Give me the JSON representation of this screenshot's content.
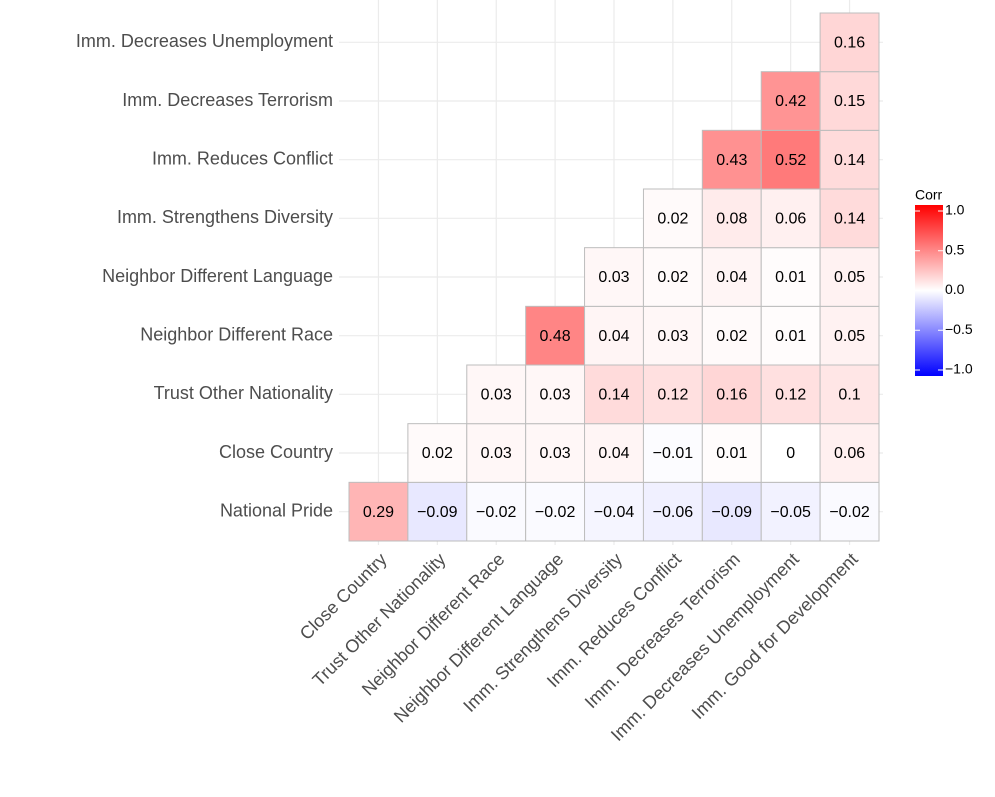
{
  "chart_data": {
    "type": "heatmap",
    "x": [
      "Close Country",
      "Trust Other Nationality",
      "Neighbor Different Race",
      "Neighbor Different Language",
      "Imm. Strengthens Diversity",
      "Imm. Reduces Conflict",
      "Imm. Decreases Terrorism",
      "Imm. Decreases Unemployment",
      "Imm. Good for Development"
    ],
    "y": [
      "National Pride",
      "Close Country",
      "Trust Other Nationality",
      "Neighbor Different Race",
      "Neighbor Different Language",
      "Imm. Strengthens Diversity",
      "Imm. Reduces Conflict",
      "Imm. Decreases Terrorism",
      "Imm. Decreases Unemployment"
    ],
    "values": [
      [
        0.29,
        -0.09,
        -0.02,
        -0.02,
        -0.04,
        -0.06,
        -0.09,
        -0.05,
        -0.02
      ],
      [
        null,
        0.02,
        0.03,
        0.03,
        0.04,
        -0.01,
        0.01,
        0,
        0.06
      ],
      [
        null,
        null,
        0.03,
        0.03,
        0.14,
        0.12,
        0.16,
        0.12,
        0.1
      ],
      [
        null,
        null,
        null,
        0.48,
        0.04,
        0.03,
        0.02,
        0.01,
        0.05
      ],
      [
        null,
        null,
        null,
        null,
        0.03,
        0.02,
        0.04,
        0.01,
        0.05
      ],
      [
        null,
        null,
        null,
        null,
        null,
        0.02,
        0.08,
        0.06,
        0.14
      ],
      [
        null,
        null,
        null,
        null,
        null,
        null,
        0.43,
        0.52,
        0.14
      ],
      [
        null,
        null,
        null,
        null,
        null,
        null,
        null,
        0.42,
        0.15
      ],
      [
        null,
        null,
        null,
        null,
        null,
        null,
        null,
        null,
        0.16
      ]
    ],
    "value_labels": [
      [
        "0.29",
        "−0.09",
        "−0.02",
        "−0.02",
        "−0.04",
        "−0.06",
        "−0.09",
        "−0.05",
        "−0.02"
      ],
      [
        null,
        "0.02",
        "0.03",
        "0.03",
        "0.04",
        "−0.01",
        "0.01",
        "0",
        "0.06"
      ],
      [
        null,
        null,
        "0.03",
        "0.03",
        "0.14",
        "0.12",
        "0.16",
        "0.12",
        "0.1"
      ],
      [
        null,
        null,
        null,
        "0.48",
        "0.04",
        "0.03",
        "0.02",
        "0.01",
        "0.05"
      ],
      [
        null,
        null,
        null,
        null,
        "0.03",
        "0.02",
        "0.04",
        "0.01",
        "0.05"
      ],
      [
        null,
        null,
        null,
        null,
        null,
        "0.02",
        "0.08",
        "0.06",
        "0.14"
      ],
      [
        null,
        null,
        null,
        null,
        null,
        null,
        "0.43",
        "0.52",
        "0.14"
      ],
      [
        null,
        null,
        null,
        null,
        null,
        null,
        null,
        "0.42",
        "0.15"
      ],
      [
        null,
        null,
        null,
        null,
        null,
        null,
        null,
        null,
        "0.16"
      ]
    ],
    "legend_title": "Corr",
    "clim": [
      -1,
      1
    ],
    "cticks": [
      {
        "value": 1,
        "label": "1.0"
      },
      {
        "value": 0.5,
        "label": "0.5"
      },
      {
        "value": 0,
        "label": "0.0"
      },
      {
        "value": -0.5,
        "label": "−0.5"
      },
      {
        "value": -1,
        "label": "−1.0"
      }
    ],
    "colors": {
      "low": "#0000ff",
      "mid": "#ffffff",
      "high": "#ff0000"
    },
    "grid": true
  }
}
